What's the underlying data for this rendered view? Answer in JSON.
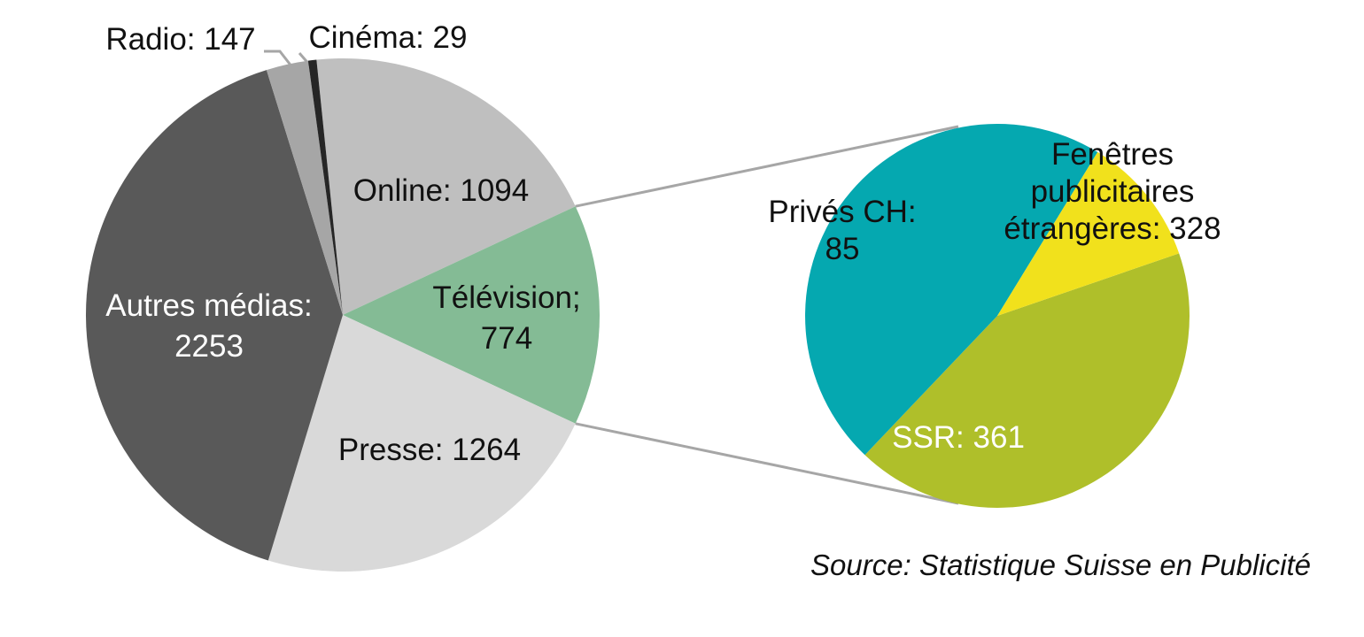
{
  "chart_data": [
    {
      "type": "pie",
      "title": "",
      "slices": [
        {
          "name": "Online",
          "value": 1094,
          "label_lines": [
            "Online: 1094"
          ],
          "color": "#bfbfbf"
        },
        {
          "name": "Télévision",
          "value": 774,
          "label_lines": [
            "Télévision;",
            "774"
          ],
          "color": "#84bb95"
        },
        {
          "name": "Presse",
          "value": 1264,
          "label_lines": [
            "Presse: 1264"
          ],
          "color": "#d9d9d9"
        },
        {
          "name": "Autres médias",
          "value": 2253,
          "label_lines": [
            "Autres médias:",
            "2253"
          ],
          "color": "#595959"
        },
        {
          "name": "Radio",
          "value": 147,
          "label_lines": [
            "Radio: 147"
          ],
          "color": "#a6a6a6"
        },
        {
          "name": "Cinéma",
          "value": 29,
          "label_lines": [
            "Cinéma: 29"
          ],
          "color": "#262626"
        }
      ],
      "exploded_slice": "Télévision"
    },
    {
      "type": "pie",
      "title": "",
      "breakdown_of": "Télévision",
      "slices": [
        {
          "name": "Fenêtres publicitaires étrangères",
          "value": 328,
          "label_lines": [
            "Fenêtres",
            "publicitaires",
            "étrangères: 328"
          ],
          "color": "#afbf2a"
        },
        {
          "name": "SSR",
          "value": 361,
          "label_lines": [
            "SSR: 361"
          ],
          "color": "#05a8b0"
        },
        {
          "name": "Privés CH",
          "value": 85,
          "label_lines": [
            "Privés CH:",
            "85"
          ],
          "color": "#f1e11c"
        }
      ]
    }
  ],
  "source_note": "Source: Statistique Suisse en Publicité",
  "connector_color": "#a6a6a6"
}
